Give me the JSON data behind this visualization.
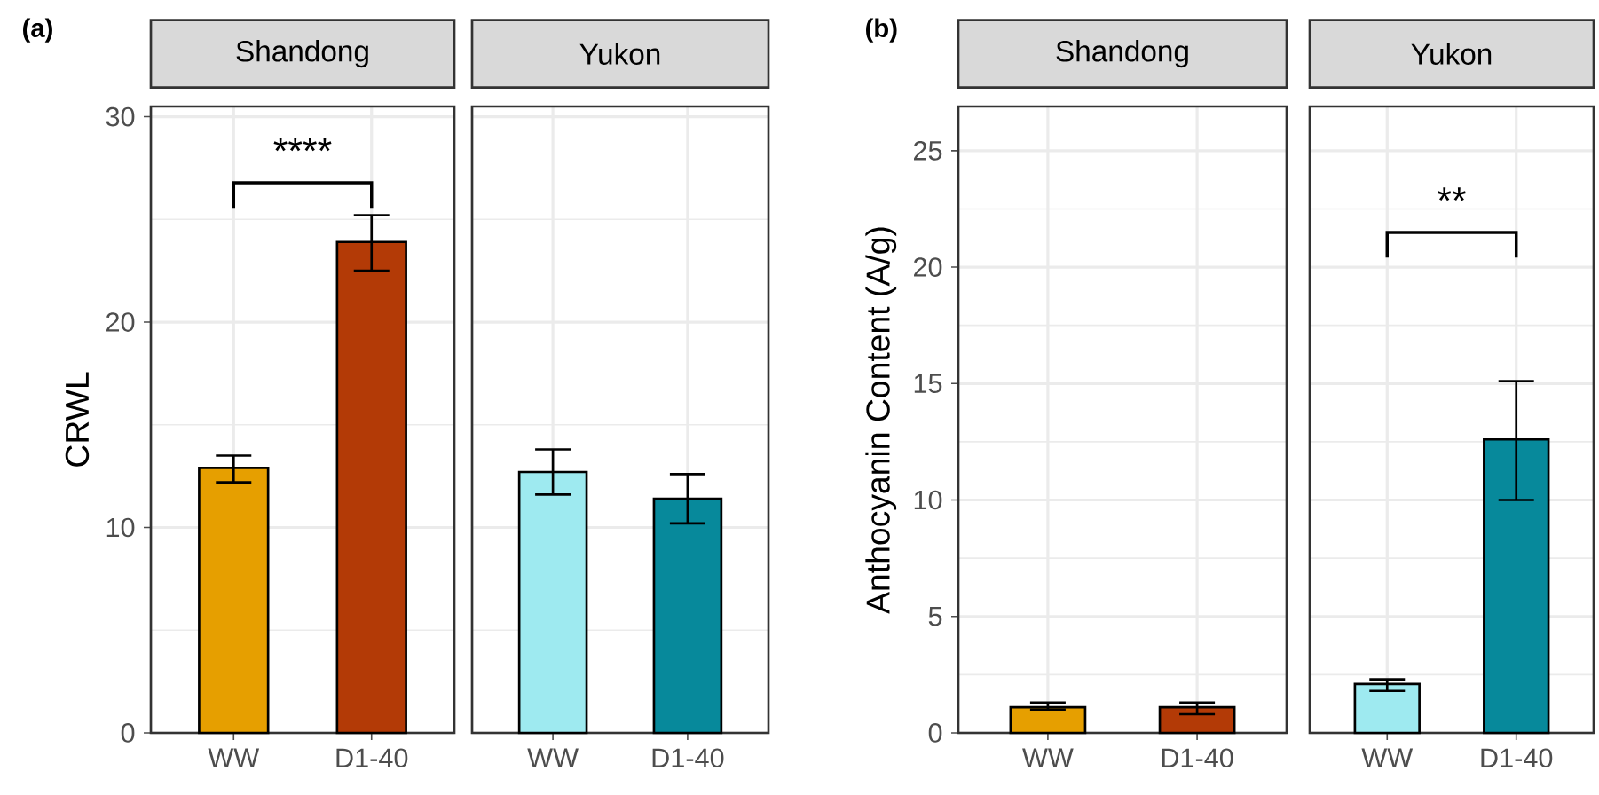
{
  "chart_data": [
    {
      "type": "bar",
      "title": "Shandong",
      "ylabel": "CRWL",
      "categories": [
        "WW",
        "D1-40"
      ],
      "values": [
        12.9,
        23.9
      ],
      "errors": [
        [
          12.2,
          13.5
        ],
        [
          22.5,
          25.2
        ]
      ],
      "colors": [
        "#e69f00",
        "#b33a06"
      ],
      "ylim": [
        0,
        30.5
      ],
      "yticks": [
        0,
        10,
        20,
        30
      ],
      "grid": true,
      "annotations": [
        "(a)",
        "****"
      ]
    },
    {
      "type": "bar",
      "title": "Yukon",
      "categories": [
        "WW",
        "D1-40"
      ],
      "values": [
        12.7,
        11.4
      ],
      "errors": [
        [
          11.6,
          13.8
        ],
        [
          10.2,
          12.6
        ]
      ],
      "colors": [
        "#9eeaf0",
        "#07899b"
      ],
      "ylim": [
        0,
        30.5
      ],
      "yticks": [
        0,
        10,
        20,
        30
      ],
      "grid": true,
      "tick_labels": "x"
    },
    {
      "type": "bar",
      "title": "Shandong",
      "ylabel": "Anthocyanin Content (A/g)",
      "categories": [
        "WW",
        "D1-40"
      ],
      "values": [
        1.1,
        1.1
      ],
      "errors": [
        [
          1.0,
          1.3
        ],
        [
          0.8,
          1.3
        ]
      ],
      "colors": [
        "#e69f00",
        "#b33a06"
      ],
      "ylim": [
        0,
        26.9
      ],
      "yticks": [
        0,
        5,
        10,
        15,
        20,
        25
      ],
      "grid": true,
      "annotations": [
        "(b)"
      ]
    },
    {
      "type": "bar",
      "title": "Yukon",
      "categories": [
        "WW",
        "D1-40"
      ],
      "values": [
        2.1,
        12.6
      ],
      "errors": [
        [
          1.8,
          2.3
        ],
        [
          10.0,
          15.1
        ]
      ],
      "colors": [
        "#9eeaf0",
        "#07899b"
      ],
      "ylim": [
        0,
        26.9
      ],
      "yticks": [
        0,
        5,
        10,
        15,
        20,
        25
      ],
      "grid": true,
      "tick_labels": "x",
      "annotations": [
        "**"
      ]
    }
  ]
}
